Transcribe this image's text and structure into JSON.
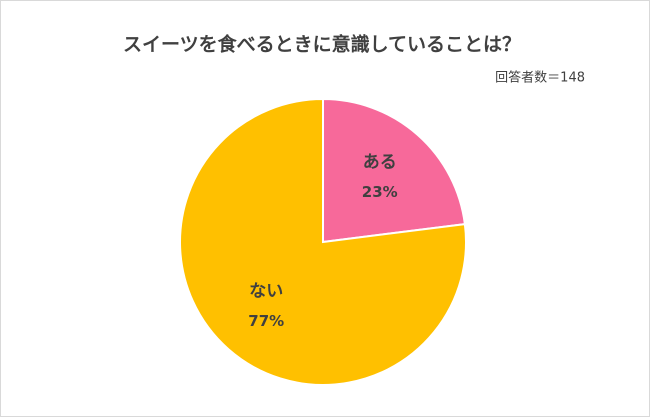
{
  "chart_data": {
    "type": "pie",
    "title": "スイーツを食べるときに意識していることは？",
    "subtitle": "回答者数＝148",
    "categories": [
      "ある",
      "ない"
    ],
    "values": [
      23,
      77
    ],
    "value_labels": [
      "23%",
      "77%"
    ],
    "colors": [
      "#f7699a",
      "#ffc000"
    ]
  }
}
